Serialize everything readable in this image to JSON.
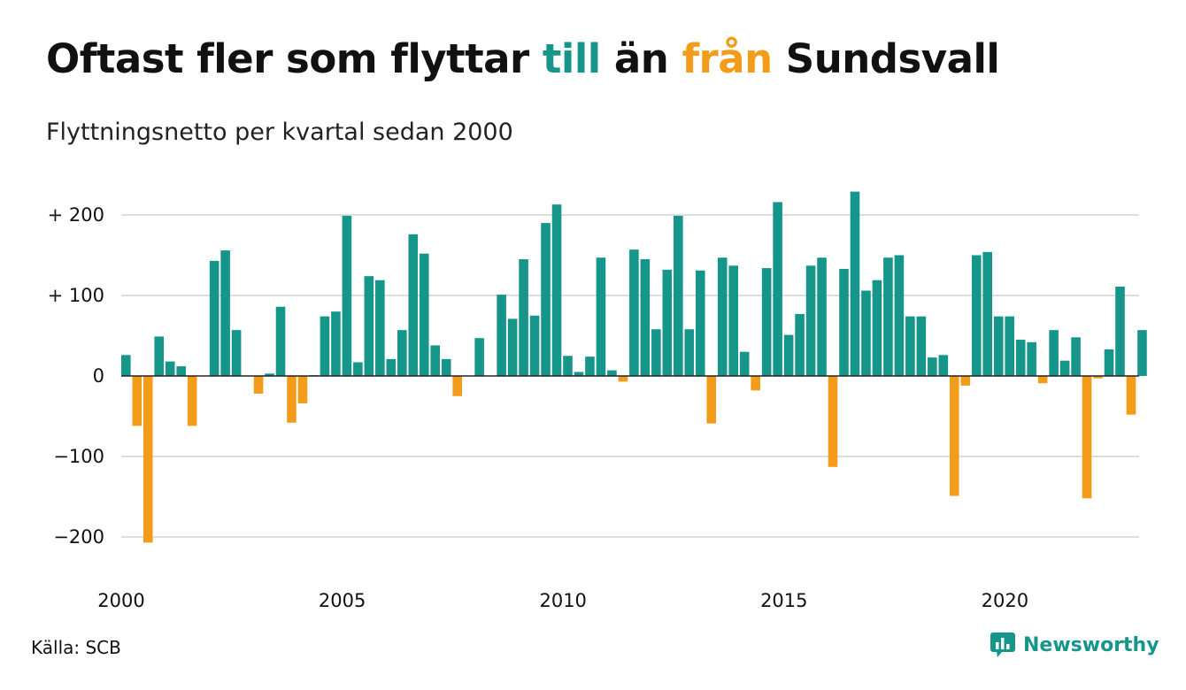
{
  "header": {
    "title_prefix": "Oftast fler som flyttar ",
    "title_pos": "till",
    "title_mid": " än ",
    "title_neg": "från",
    "title_suffix": " Sundsvall",
    "subtitle": "Flyttningsnetto per kvartal sedan 2000"
  },
  "footer": {
    "source": "Källa: SCB",
    "brand": "Newsworthy"
  },
  "colors": {
    "positive": "#16968a",
    "negative": "#f39c1a",
    "grid": "#dddddd"
  },
  "icons": {
    "brand_logo": "newsworthy-bar-chart-icon"
  },
  "chart_data": {
    "type": "bar",
    "title": "Oftast fler som flyttar till än från Sundsvall",
    "subtitle": "Flyttningsnetto per kvartal sedan 2000",
    "xlabel": "",
    "ylabel": "",
    "ylim": [
      -240,
      240
    ],
    "yticks": [
      {
        "value": 200,
        "label": "+ 200"
      },
      {
        "value": 100,
        "label": "+ 100"
      },
      {
        "value": 0,
        "label": "0"
      },
      {
        "value": -100,
        "label": "−100"
      },
      {
        "value": -200,
        "label": "−200"
      }
    ],
    "xticks": [
      {
        "value": 2000,
        "label": "2000"
      },
      {
        "value": 2005,
        "label": "2005"
      },
      {
        "value": 2010,
        "label": "2010"
      },
      {
        "value": 2015,
        "label": "2015"
      },
      {
        "value": 2020,
        "label": "2020"
      }
    ],
    "start": {
      "year": 2000,
      "quarter": 1
    },
    "grid": true,
    "legend": "none",
    "values": [
      26,
      -62,
      -207,
      49,
      18,
      12,
      -62,
      0,
      143,
      156,
      57,
      0,
      -22,
      3,
      86,
      -58,
      -34,
      1,
      74,
      80,
      199,
      17,
      124,
      119,
      21,
      57,
      176,
      152,
      38,
      21,
      -25,
      0,
      47,
      0,
      101,
      71,
      145,
      75,
      190,
      213,
      25,
      5,
      24,
      147,
      7,
      -7,
      157,
      145,
      58,
      132,
      199,
      58,
      131,
      -59,
      147,
      137,
      30,
      -18,
      134,
      216,
      51,
      77,
      137,
      147,
      -113,
      133,
      229,
      106,
      119,
      147,
      150,
      74,
      74,
      23,
      26,
      -149,
      -12,
      150,
      154,
      74,
      74,
      45,
      42,
      -9,
      57,
      19,
      48,
      -152,
      -3,
      33,
      111,
      -48,
      57
    ]
  }
}
